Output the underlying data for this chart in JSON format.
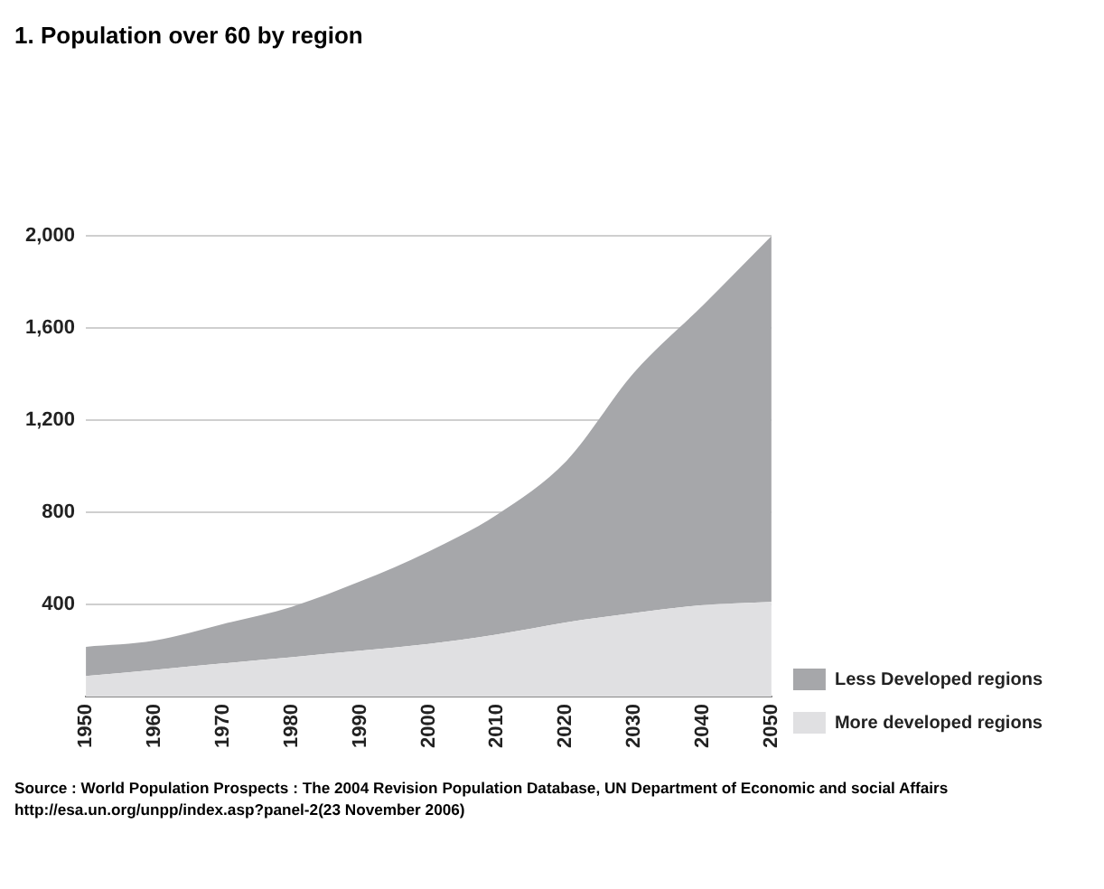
{
  "chart_data": {
    "type": "area",
    "title": "1. Population over 60 by region",
    "categories": [
      "1950",
      "1960",
      "1970",
      "1980",
      "1990",
      "2000",
      "2010",
      "2020",
      "2030",
      "2040",
      "2050"
    ],
    "stacked": true,
    "series": [
      {
        "name": "More developed regions",
        "color": "#e0e0e2",
        "values": [
          89,
          116,
          144,
          171,
          199,
          229,
          270,
          322,
          363,
          397,
          411
        ]
      },
      {
        "name": "Less Developed regions",
        "color": "#a6a7aa",
        "values": [
          127,
          127,
          171,
          219,
          301,
          401,
          521,
          698,
          1045,
          1302,
          1589
        ]
      }
    ],
    "ylim": [
      0,
      2000
    ],
    "yticks": [
      {
        "value": 0,
        "label": null
      },
      {
        "value": 400,
        "label": "400"
      },
      {
        "value": 800,
        "label": "800"
      },
      {
        "value": 1200,
        "label": "1,200"
      },
      {
        "value": 1600,
        "label": "1,600"
      },
      {
        "value": 2000,
        "label": "2,000"
      }
    ],
    "grid": "y",
    "legend": "right",
    "annotations": [
      "Source : World Population Prospects : The 2004 Revision Population Database, UN Department of Economic and social Affairs",
      "http://esa.un.org/unpp/index.asp?panel-2(23 November 2006)"
    ]
  }
}
